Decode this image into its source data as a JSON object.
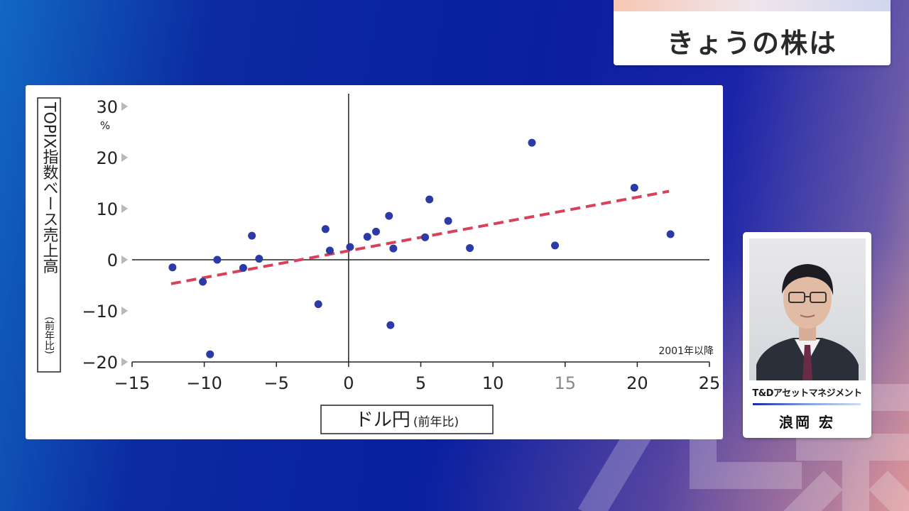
{
  "program": {
    "title": "きょうの株は"
  },
  "chart_data": {
    "type": "scatter",
    "xlabel": "ドル円",
    "xlabel_suffix": "(前年比)",
    "ylabel": "TOPIX指数ベース売上高",
    "ylabel_suffix": "(前年比)",
    "note": "2001年以降",
    "xlim": [
      -15,
      25
    ],
    "ylim": [
      -20,
      30
    ],
    "x_ticks": [
      "−15",
      "−10",
      "−5",
      "0",
      "5",
      "10",
      "15",
      "20",
      "25"
    ],
    "x_unit": "%",
    "y_ticks": [
      "30",
      "20",
      "10",
      "0",
      "−10",
      "−20"
    ],
    "y_unit": "%",
    "grid": false,
    "colors": {
      "points": "#2b3aa6",
      "trend": "#d9405a"
    },
    "points": [
      [
        -12.2,
        -1.5
      ],
      [
        -10.1,
        -4.3
      ],
      [
        -9.6,
        -18.5
      ],
      [
        -9.1,
        0.0
      ],
      [
        -7.3,
        -1.6
      ],
      [
        -6.7,
        4.7
      ],
      [
        -6.2,
        0.2
      ],
      [
        -2.1,
        -8.7
      ],
      [
        -1.6,
        6.0
      ],
      [
        -1.3,
        1.8
      ],
      [
        0.1,
        2.5
      ],
      [
        1.3,
        4.5
      ],
      [
        1.9,
        5.5
      ],
      [
        2.8,
        8.6
      ],
      [
        2.9,
        -12.8
      ],
      [
        3.1,
        2.2
      ],
      [
        5.3,
        4.4
      ],
      [
        5.6,
        11.8
      ],
      [
        6.9,
        7.6
      ],
      [
        8.4,
        2.3
      ],
      [
        12.7,
        22.9
      ],
      [
        14.3,
        2.8
      ],
      [
        19.8,
        14.1
      ],
      [
        22.3,
        5.0
      ]
    ],
    "trendline": [
      [
        -12.3,
        -4.7
      ],
      [
        22.2,
        13.4
      ]
    ]
  },
  "profile": {
    "company": "T&Dアセットマネジメント",
    "name": "浪岡 宏"
  }
}
